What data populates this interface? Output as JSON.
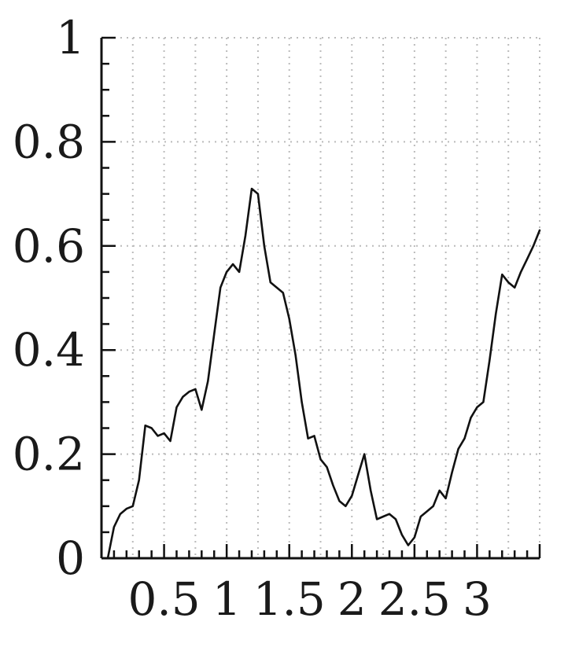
{
  "chart_data": {
    "type": "line",
    "title": "",
    "xlabel": "",
    "ylabel": "",
    "xlim": [
      0,
      3.5
    ],
    "ylim": [
      0,
      1
    ],
    "grid": true,
    "x_ticks": [
      {
        "value": 0.5,
        "label": "0.5"
      },
      {
        "value": 1,
        "label": "1"
      },
      {
        "value": 1.5,
        "label": "1.5"
      },
      {
        "value": 2,
        "label": "2"
      },
      {
        "value": 2.5,
        "label": "2.5"
      },
      {
        "value": 3,
        "label": "3"
      }
    ],
    "y_ticks": [
      {
        "value": 0,
        "label": "0"
      },
      {
        "value": 0.2,
        "label": "0.2"
      },
      {
        "value": 0.4,
        "label": "0.4"
      },
      {
        "value": 0.6,
        "label": "0.6"
      },
      {
        "value": 0.8,
        "label": "0.8"
      },
      {
        "value": 1,
        "label": "1"
      }
    ],
    "series": [
      {
        "x": [
          0.05,
          0.1,
          0.15,
          0.2,
          0.25,
          0.3,
          0.35,
          0.4,
          0.45,
          0.5,
          0.55,
          0.6,
          0.65,
          0.7,
          0.75,
          0.8,
          0.85,
          0.9,
          0.95,
          1.0,
          1.05,
          1.1,
          1.15,
          1.2,
          1.25,
          1.3,
          1.35,
          1.4,
          1.45,
          1.5,
          1.55,
          1.6,
          1.65,
          1.7,
          1.75,
          1.8,
          1.85,
          1.9,
          1.95,
          2.0,
          2.05,
          2.1,
          2.15,
          2.2,
          2.25,
          2.3,
          2.35,
          2.4,
          2.45,
          2.5,
          2.55,
          2.6,
          2.65,
          2.7,
          2.75,
          2.8,
          2.85,
          2.9,
          2.95,
          3.0,
          3.05,
          3.1,
          3.15,
          3.2,
          3.25,
          3.3,
          3.35,
          3.4,
          3.45,
          3.5
        ],
        "y": [
          0.0,
          0.06,
          0.085,
          0.095,
          0.1,
          0.15,
          0.255,
          0.25,
          0.235,
          0.24,
          0.225,
          0.29,
          0.31,
          0.32,
          0.325,
          0.285,
          0.34,
          0.43,
          0.52,
          0.55,
          0.565,
          0.55,
          0.62,
          0.71,
          0.7,
          0.6,
          0.53,
          0.52,
          0.51,
          0.46,
          0.39,
          0.3,
          0.23,
          0.235,
          0.19,
          0.175,
          0.14,
          0.11,
          0.1,
          0.12,
          0.16,
          0.2,
          0.13,
          0.075,
          0.08,
          0.085,
          0.075,
          0.045,
          0.025,
          0.04,
          0.08,
          0.09,
          0.1,
          0.13,
          0.115,
          0.165,
          0.21,
          0.23,
          0.27,
          0.29,
          0.3,
          0.38,
          0.47,
          0.545,
          0.53,
          0.52,
          0.55,
          0.575,
          0.6,
          0.63
        ]
      }
    ]
  }
}
